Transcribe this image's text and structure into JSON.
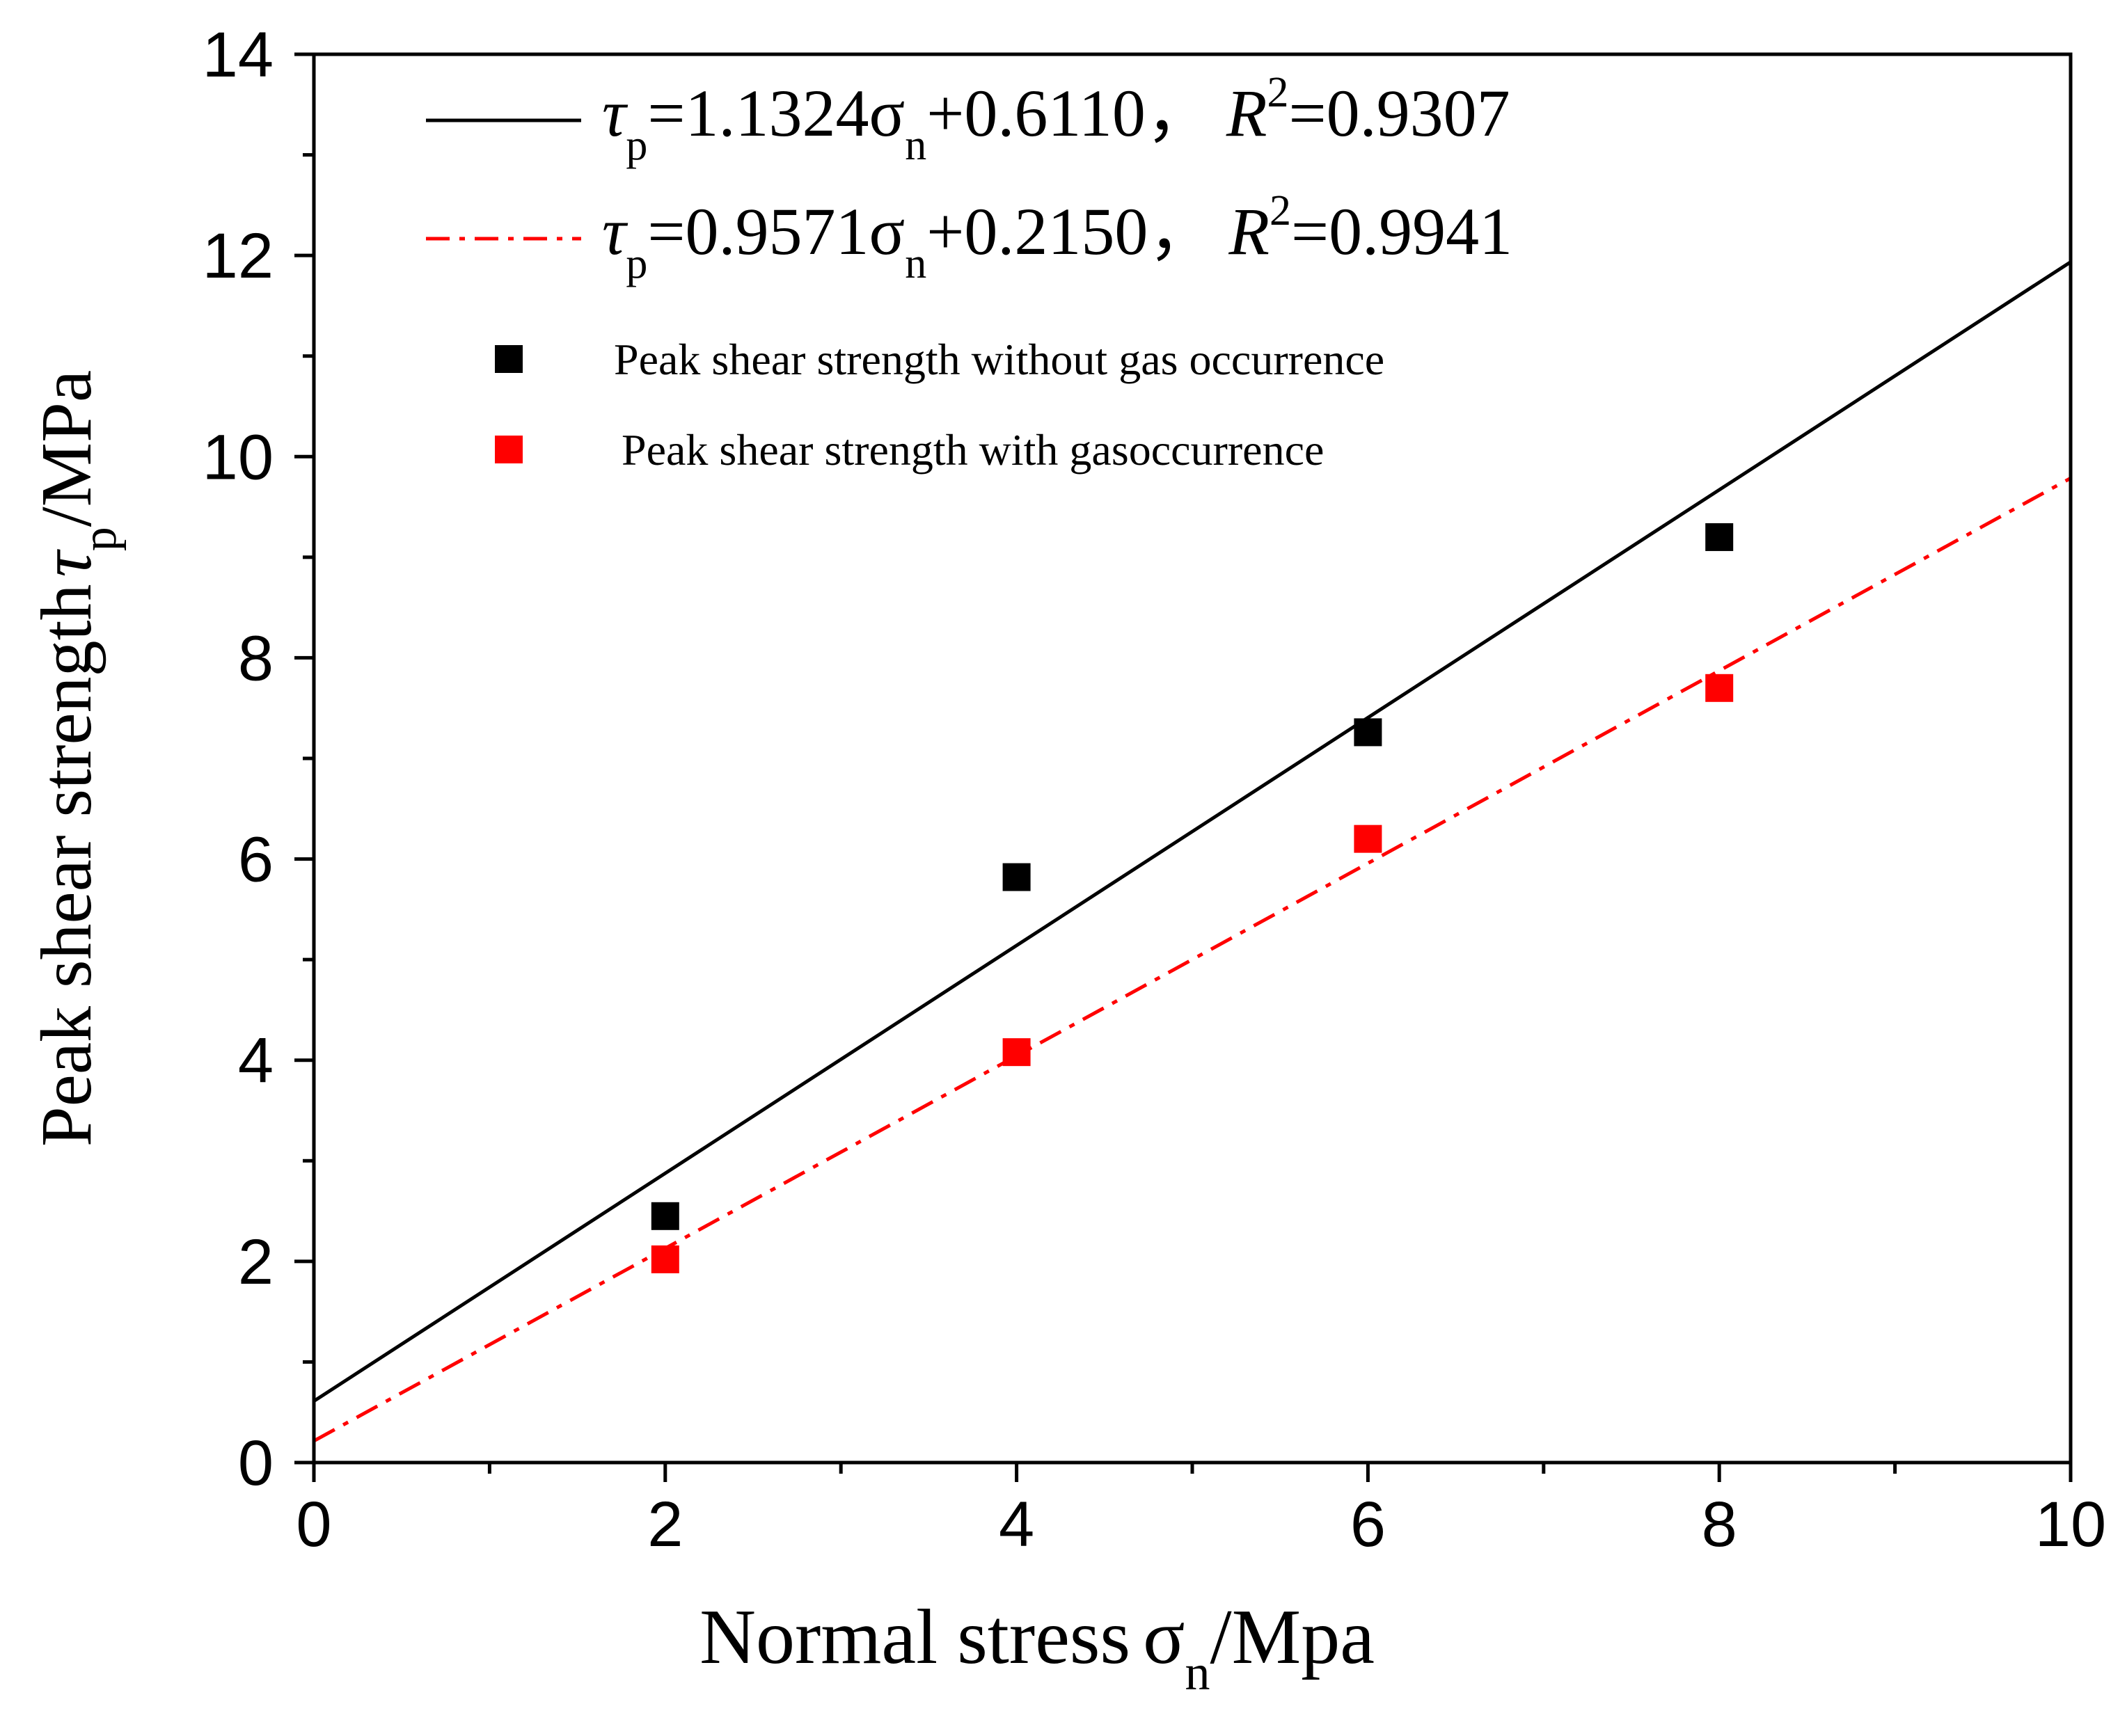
{
  "chart_data": {
    "type": "scatter",
    "xlabel": {
      "main": "Normal stress",
      "sym": "σ",
      "sub": "n",
      "unit": "/Mpa"
    },
    "ylabel": {
      "main": "Peak shear strength",
      "sym": "τ",
      "sub": "p",
      "unit": "/MPa"
    },
    "xlim": [
      0,
      10
    ],
    "ylim": [
      0,
      14
    ],
    "xticks": [
      0,
      2,
      4,
      6,
      8,
      10
    ],
    "yticks": [
      0,
      2,
      4,
      6,
      8,
      10,
      12,
      14
    ],
    "xtick_labels": [
      "0",
      "2",
      "4",
      "6",
      "8",
      "10"
    ],
    "ytick_labels": [
      "0",
      "2",
      "4",
      "6",
      "8",
      "10",
      "12",
      "14"
    ],
    "grid": false,
    "legend_position": "top-left",
    "series": [
      {
        "name": "Peak shear strength without gas occurrence",
        "marker": "square",
        "color": "#000000",
        "x": [
          2,
          4,
          6,
          8
        ],
        "y": [
          2.45,
          5.82,
          7.26,
          9.2
        ],
        "fit": {
          "slope": 1.1324,
          "intercept": 0.611,
          "style": "solid",
          "color": "#000000",
          "label": {
            "lhs": "τ",
            "lhs_sub": "p",
            "eq1": "=1.1324σ",
            "eq_sub": "n",
            "eq2": "+0.6110，",
            "r": "R",
            "r_sup": "2",
            "r_val": "=0.9307"
          }
        }
      },
      {
        "name": "Peak shear strength with gasoccurrence",
        "marker": "square",
        "color": "#ff0000",
        "x": [
          2,
          4,
          6,
          8
        ],
        "y": [
          2.02,
          4.08,
          6.2,
          7.7
        ],
        "fit": {
          "slope": 0.9571,
          "intercept": 0.215,
          "style": "dashdot",
          "color": "#ff0000",
          "label": {
            "lhs": "τ",
            "lhs_sub": "p",
            "eq1": "=0.9571σ",
            "eq_sub": "n",
            "eq2": "+0.2150，",
            "r": "R",
            "r_sup": "2",
            "r_val": "=0.9941"
          }
        }
      }
    ]
  }
}
